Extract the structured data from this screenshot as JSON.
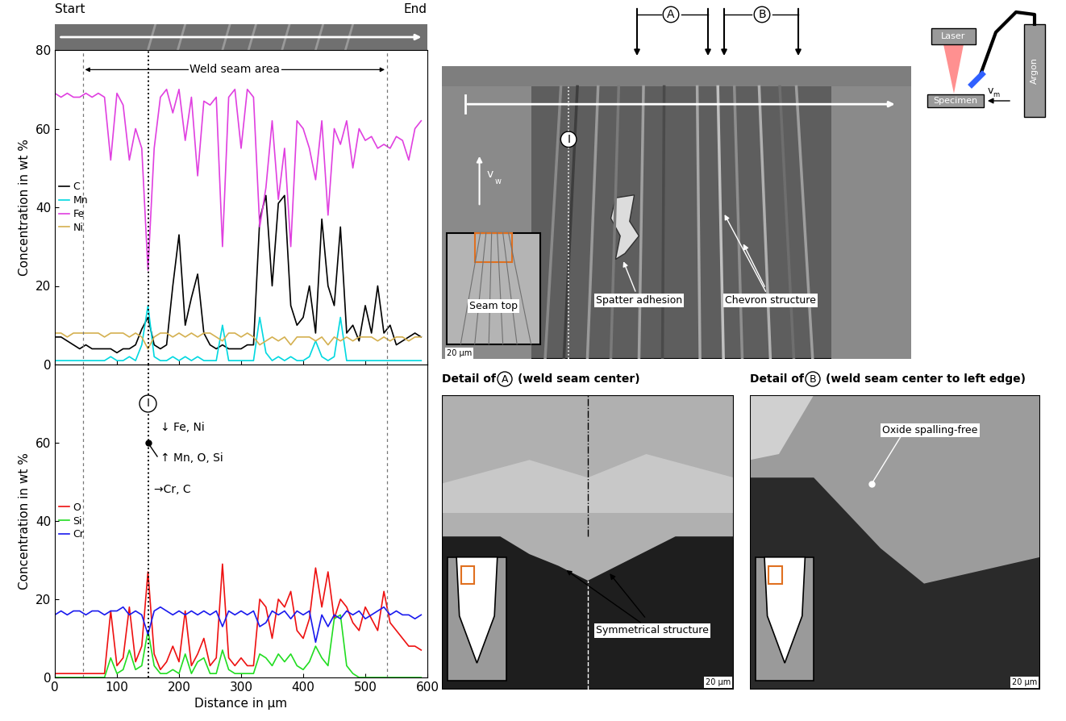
{
  "chart_data": [
    {
      "type": "line",
      "ylabel": "Concentration in wt %",
      "x": [
        0,
        10,
        20,
        30,
        40,
        50,
        60,
        70,
        80,
        90,
        100,
        110,
        120,
        130,
        140,
        150,
        160,
        170,
        180,
        190,
        200,
        210,
        220,
        230,
        240,
        250,
        260,
        270,
        280,
        290,
        300,
        310,
        320,
        330,
        340,
        350,
        360,
        370,
        380,
        390,
        400,
        410,
        420,
        430,
        440,
        450,
        460,
        470,
        480,
        490,
        500,
        510,
        520,
        530,
        540,
        550,
        560,
        570,
        580,
        590
      ],
      "series": [
        {
          "name": "C",
          "color": "#000000",
          "values": [
            7,
            7,
            6,
            5,
            4,
            5,
            4,
            4,
            4,
            4,
            3,
            4,
            4,
            5,
            9,
            12,
            5,
            4,
            5,
            20,
            33,
            10,
            17,
            23,
            8,
            5,
            4,
            5,
            4,
            4,
            4,
            5,
            5,
            37,
            43,
            20,
            41,
            43,
            15,
            10,
            12,
            20,
            8,
            37,
            20,
            15,
            35,
            8,
            10,
            6,
            15,
            8,
            20,
            8,
            10,
            5,
            6,
            7,
            8,
            7
          ]
        },
        {
          "name": "Mn",
          "color": "#00d8e0",
          "values": [
            1,
            1,
            1,
            1,
            1,
            1,
            1,
            1,
            1,
            2,
            1,
            1,
            2,
            1,
            5,
            15,
            2,
            1,
            1,
            2,
            1,
            2,
            1,
            2,
            1,
            1,
            1,
            10,
            1,
            1,
            1,
            1,
            1,
            12,
            3,
            1,
            2,
            1,
            2,
            1,
            1,
            2,
            6,
            2,
            1,
            2,
            12,
            1,
            1,
            1,
            1,
            1,
            1,
            1,
            1,
            1,
            1,
            1,
            1,
            1
          ]
        },
        {
          "name": "Fe",
          "color": "#e040e0",
          "values": [
            69,
            68,
            69,
            68,
            68,
            69,
            68,
            69,
            68,
            52,
            69,
            66,
            52,
            60,
            55,
            24,
            55,
            68,
            70,
            64,
            70,
            57,
            68,
            48,
            67,
            66,
            68,
            30,
            68,
            70,
            55,
            70,
            68,
            35,
            45,
            62,
            42,
            55,
            30,
            62,
            60,
            55,
            47,
            62,
            38,
            60,
            56,
            62,
            50,
            60,
            57,
            58,
            55,
            56,
            55,
            58,
            57,
            52,
            60,
            62
          ]
        },
        {
          "name": "Ni",
          "color": "#d4b050",
          "values": [
            8,
            8,
            7,
            8,
            8,
            8,
            8,
            8,
            7,
            8,
            8,
            8,
            7,
            8,
            7,
            4,
            7,
            8,
            8,
            7,
            8,
            7,
            8,
            7,
            8,
            8,
            7,
            6,
            8,
            8,
            7,
            8,
            7,
            5,
            6,
            7,
            6,
            7,
            5,
            7,
            7,
            7,
            6,
            7,
            5,
            7,
            6,
            7,
            6,
            7,
            7,
            7,
            6,
            7,
            6,
            7,
            7,
            6,
            7,
            7
          ]
        }
      ],
      "xlim": [
        0,
        600
      ],
      "xticks": [
        0,
        100,
        200,
        300,
        400,
        500,
        600
      ],
      "ylim": [
        0,
        80
      ],
      "yticks": [
        0,
        20,
        40,
        60,
        80
      ],
      "tick_labels": "y",
      "legend": "center left"
    },
    {
      "type": "line",
      "ylabel": "Concentration in wt %",
      "xlabel": "Distance in µm",
      "x": [
        0,
        10,
        20,
        30,
        40,
        50,
        60,
        70,
        80,
        90,
        100,
        110,
        120,
        130,
        140,
        150,
        160,
        170,
        180,
        190,
        200,
        210,
        220,
        230,
        240,
        250,
        260,
        270,
        280,
        290,
        300,
        310,
        320,
        330,
        340,
        350,
        360,
        370,
        380,
        390,
        400,
        410,
        420,
        430,
        440,
        450,
        460,
        470,
        480,
        490,
        500,
        510,
        520,
        530,
        540,
        550,
        560,
        570,
        580,
        590
      ],
      "series": [
        {
          "name": "O",
          "color": "#ee1111",
          "values": [
            1,
            1,
            1,
            1,
            1,
            1,
            1,
            1,
            1,
            17,
            3,
            5,
            18,
            4,
            8,
            27,
            6,
            2,
            4,
            8,
            4,
            17,
            3,
            6,
            10,
            3,
            5,
            29,
            5,
            3,
            5,
            3,
            3,
            20,
            18,
            10,
            20,
            18,
            22,
            12,
            10,
            15,
            28,
            18,
            27,
            15,
            20,
            18,
            14,
            12,
            18,
            15,
            12,
            22,
            14,
            12,
            10,
            8,
            8,
            7
          ]
        },
        {
          "name": "Si",
          "color": "#22dd22",
          "values": [
            0,
            0,
            0,
            0,
            0,
            0,
            0,
            0,
            0,
            5,
            1,
            2,
            7,
            2,
            3,
            12,
            3,
            1,
            1,
            2,
            1,
            6,
            1,
            4,
            5,
            1,
            1,
            7,
            2,
            1,
            1,
            1,
            1,
            6,
            5,
            3,
            6,
            4,
            6,
            3,
            2,
            4,
            8,
            5,
            3,
            15,
            16,
            3,
            1,
            0,
            0,
            0,
            0,
            0,
            0,
            0,
            0,
            0,
            0,
            0
          ]
        },
        {
          "name": "Cr",
          "color": "#1a1aee",
          "values": [
            16,
            17,
            16,
            17,
            17,
            16,
            17,
            17,
            16,
            17,
            17,
            18,
            16,
            17,
            16,
            11,
            17,
            18,
            17,
            16,
            17,
            16,
            17,
            16,
            17,
            16,
            17,
            13,
            17,
            16,
            17,
            16,
            17,
            13,
            14,
            17,
            16,
            17,
            15,
            17,
            16,
            17,
            9,
            16,
            13,
            16,
            15,
            17,
            16,
            17,
            15,
            16,
            17,
            18,
            16,
            17,
            16,
            16,
            15,
            16
          ]
        }
      ],
      "xlim": [
        0,
        600
      ],
      "xticks": [
        0,
        100,
        200,
        300,
        400,
        500,
        600
      ],
      "ylim": [
        0,
        80
      ],
      "yticks": [
        0,
        20,
        40,
        60
      ],
      "legend": "center left"
    }
  ],
  "strip": {
    "start": "Start",
    "end": "End"
  },
  "vertical_lines": {
    "dashed": [
      45,
      535
    ],
    "dotted": 150,
    "dotted_label": "I"
  },
  "weld_seam_label": "Weld seam area",
  "marker_notes": [
    "↓ Fe, Ni",
    "↑ Mn, O, Si",
    "→Cr, C"
  ],
  "main_image": {
    "markers": [
      "A",
      "B"
    ],
    "marker_I": "I",
    "velocity": {
      "symbol": "v",
      "subscript": "w"
    },
    "inset_label": "Seam top",
    "callouts": [
      "Spatter adhesion",
      "Chevron structure"
    ]
  },
  "schematic": {
    "laser": "Laser",
    "gas": "Argon",
    "specimen": "Specimen",
    "velocity": {
      "symbol": "v",
      "subscript": "m"
    }
  },
  "details": [
    {
      "prefix": "Detail of",
      "letter": "A",
      "suffix": "(weld seam center)",
      "callout": "Symmetrical structure"
    },
    {
      "prefix": "Detail of",
      "letter": "B",
      "suffix": "(weld seam center to left edge)",
      "callout": "Oxide spalling-free"
    }
  ],
  "scale_bar": "20 µm"
}
